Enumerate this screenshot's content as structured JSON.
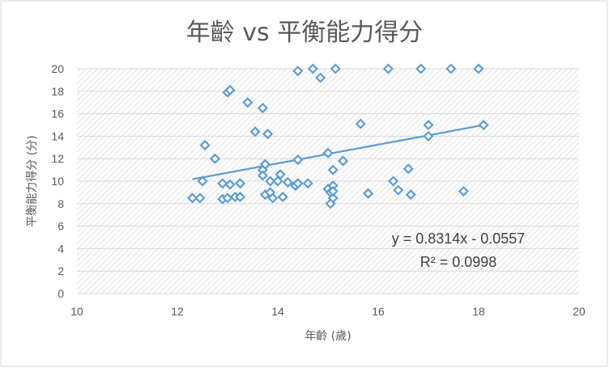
{
  "chart_data": {
    "type": "scatter",
    "title": "年齡 vs 平衡能力得分",
    "xlabel": "年齡 (歲)",
    "ylabel": "平衡能力得分 (分)",
    "xlim": [
      10,
      20
    ],
    "ylim": [
      0,
      20
    ],
    "xticks": [
      "10",
      "12",
      "14",
      "16",
      "18",
      "20"
    ],
    "yticks": [
      "0",
      "2",
      "4",
      "6",
      "8",
      "10",
      "12",
      "14",
      "16",
      "18",
      "20"
    ],
    "grid": true,
    "marker": "diamond-open",
    "series_color": "#5b9bd5",
    "trendline": {
      "type": "linear",
      "slope": 0.8314,
      "intercept": -0.0557,
      "x_range": [
        12.3,
        18.1
      ],
      "equation": "y = 0.8314x - 0.0557",
      "r_squared": "R² = 0.0998"
    },
    "points": [
      [
        12.3,
        8.5
      ],
      [
        12.45,
        8.5
      ],
      [
        12.5,
        10.0
      ],
      [
        12.55,
        13.2
      ],
      [
        12.75,
        12.0
      ],
      [
        12.9,
        8.4
      ],
      [
        12.9,
        9.8
      ],
      [
        13.0,
        8.5
      ],
      [
        13.05,
        9.7
      ],
      [
        13.0,
        17.9
      ],
      [
        13.05,
        18.1
      ],
      [
        13.15,
        8.6
      ],
      [
        13.25,
        8.6
      ],
      [
        13.25,
        9.8
      ],
      [
        13.4,
        17.0
      ],
      [
        13.55,
        14.4
      ],
      [
        13.7,
        16.5
      ],
      [
        13.7,
        11.0
      ],
      [
        13.7,
        10.5
      ],
      [
        13.75,
        11.5
      ],
      [
        13.75,
        8.8
      ],
      [
        13.8,
        14.2
      ],
      [
        13.85,
        9.0
      ],
      [
        13.85,
        10.0
      ],
      [
        13.9,
        8.5
      ],
      [
        14.0,
        10.0
      ],
      [
        14.05,
        10.6
      ],
      [
        14.1,
        8.6
      ],
      [
        14.2,
        9.9
      ],
      [
        14.35,
        9.6
      ],
      [
        14.4,
        9.8
      ],
      [
        14.4,
        11.9
      ],
      [
        14.4,
        19.8
      ],
      [
        14.6,
        9.8
      ],
      [
        14.7,
        20.0
      ],
      [
        14.85,
        19.2
      ],
      [
        15.0,
        9.3
      ],
      [
        15.0,
        12.5
      ],
      [
        15.05,
        8.0
      ],
      [
        15.05,
        9.0
      ],
      [
        15.1,
        8.5
      ],
      [
        15.1,
        9.6
      ],
      [
        15.1,
        11.0
      ],
      [
        15.1,
        9.1
      ],
      [
        15.15,
        20.0
      ],
      [
        15.3,
        11.8
      ],
      [
        15.65,
        15.1
      ],
      [
        15.8,
        8.9
      ],
      [
        16.2,
        20.0
      ],
      [
        16.3,
        10.0
      ],
      [
        16.4,
        9.2
      ],
      [
        16.6,
        11.1
      ],
      [
        16.65,
        8.8
      ],
      [
        16.85,
        20.0
      ],
      [
        17.0,
        14.0
      ],
      [
        17.0,
        15.0
      ],
      [
        17.45,
        20.0
      ],
      [
        17.7,
        9.1
      ],
      [
        18.0,
        20.0
      ],
      [
        18.1,
        15.0
      ]
    ]
  }
}
